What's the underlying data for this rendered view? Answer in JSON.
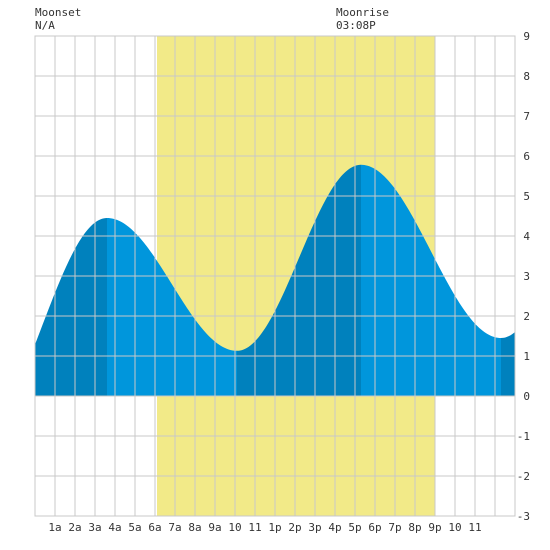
{
  "header": {
    "moonset_label": "Moonset",
    "moonset_time": "N/A",
    "moonrise_label": "Moonrise",
    "moonrise_time": "03:08P"
  },
  "colors": {
    "background": "#ffffff",
    "daylight": "#f2ea88",
    "grid": "#c8c8c8",
    "tide_dark": "#0081bd",
    "tide_light": "#0096dc",
    "axis_text": "#333333"
  },
  "chart_data": {
    "type": "area",
    "title": "",
    "xlabel": "",
    "ylabel": "",
    "grid": true,
    "x_unit": "hours from midnight",
    "x_tick_labels": [
      "1a",
      "2a",
      "3a",
      "4a",
      "5a",
      "6a",
      "7a",
      "8a",
      "9a",
      "10",
      "11",
      "1p",
      "2p",
      "3p",
      "4p",
      "5p",
      "6p",
      "7p",
      "8p",
      "9p",
      "10",
      "11"
    ],
    "y_tick_labels": [
      "9",
      "8",
      "7",
      "6",
      "5",
      "4",
      "3",
      "2",
      "1",
      "0",
      "-1",
      "-2",
      "-3"
    ],
    "xlim": [
      0,
      24
    ],
    "ylim": [
      -3,
      9
    ],
    "daylight_window": [
      6.1,
      20.0
    ],
    "tide_extremes": [
      {
        "time": 3.6,
        "height": 4.45,
        "kind": "high"
      },
      {
        "time": 10.1,
        "height": 1.13,
        "kind": "low"
      },
      {
        "time": 16.3,
        "height": 5.78,
        "kind": "high"
      },
      {
        "time": 23.3,
        "height": 1.45,
        "kind": "low"
      }
    ],
    "start_height": 2.2,
    "end_height": 1.6,
    "moonrise_time": 15.1
  }
}
